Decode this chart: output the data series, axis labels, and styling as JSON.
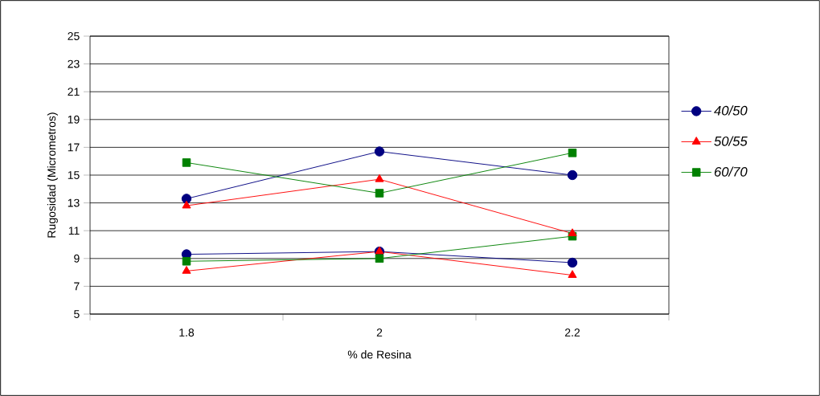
{
  "chart_data": {
    "type": "line",
    "xlabel": "% de Resina",
    "ylabel": "Rugosidad (Micrometros)",
    "categories": [
      "1.8",
      "2",
      "2.2"
    ],
    "ylim": [
      5,
      25
    ],
    "yticks": [
      5,
      7,
      9,
      11,
      13,
      15,
      17,
      19,
      21,
      23,
      25
    ],
    "grid": "y",
    "legend": "right",
    "series": [
      {
        "name": "40/50",
        "color": "#000080",
        "marker": "circle",
        "values": [
          13.3,
          16.7,
          15.0
        ]
      },
      {
        "name": "50/55",
        "color": "#ff0000",
        "marker": "triangle",
        "values": [
          12.8,
          14.7,
          10.8
        ]
      },
      {
        "name": "60/70",
        "color": "#008000",
        "marker": "square",
        "values": [
          15.9,
          13.7,
          16.6
        ]
      },
      {
        "color": "#000080",
        "marker": "circle",
        "values": [
          9.3,
          9.5,
          8.7
        ]
      },
      {
        "color": "#ff0000",
        "marker": "triangle",
        "values": [
          8.1,
          9.5,
          7.8
        ]
      },
      {
        "color": "#008000",
        "marker": "square",
        "values": [
          8.8,
          9.0,
          10.6
        ]
      }
    ]
  }
}
